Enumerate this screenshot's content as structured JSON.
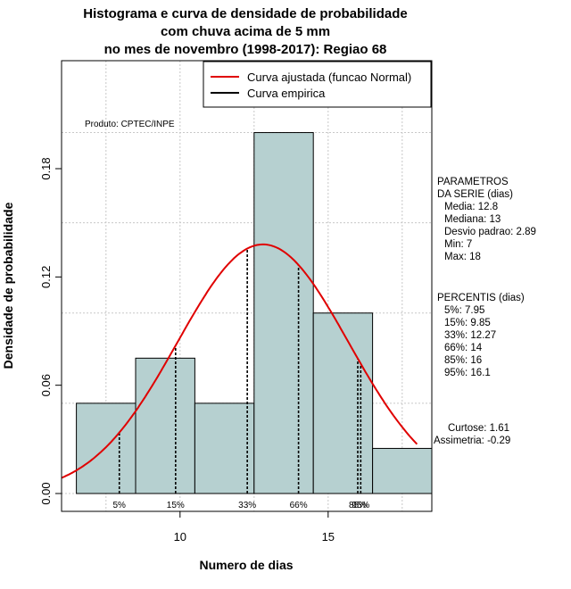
{
  "chart_data": {
    "type": "bar",
    "title_lines": [
      "Histograma e curva de densidade de probabilidade",
      "com chuva acima de 5 mm",
      "no mes de novembro (1998-2017): Regiao 68"
    ],
    "xlabel": "Numero de dias",
    "ylabel": "Densidade de probabilidade",
    "xlim": [
      6.0,
      18.5
    ],
    "ylim": [
      0.0,
      0.24
    ],
    "x_ticks": [
      10,
      15
    ],
    "y_ticks": [
      0.0,
      0.06,
      0.12,
      0.18
    ],
    "y_tick_labels": [
      "0.00",
      "0.06",
      "0.12",
      "0.18"
    ],
    "bins": [
      {
        "start": 6.5,
        "end": 8.5,
        "density": 0.05
      },
      {
        "start": 8.5,
        "end": 10.5,
        "density": 0.075
      },
      {
        "start": 10.5,
        "end": 12.5,
        "density": 0.05
      },
      {
        "start": 12.5,
        "end": 14.5,
        "density": 0.2
      },
      {
        "start": 14.5,
        "end": 16.5,
        "density": 0.1
      },
      {
        "start": 16.5,
        "end": 18.5,
        "density": 0.025
      }
    ],
    "fitted_curve": {
      "name": "Curva ajustada (funcao Normal)",
      "distribution": "normal",
      "mean": 12.8,
      "sd": 2.89,
      "color": "#e00000"
    },
    "empirical_curve": {
      "name": "Curva empirica",
      "color": "#000000"
    },
    "percentile_markers": [
      {
        "label": "5%",
        "x": 7.95
      },
      {
        "label": "15%",
        "x": 9.85
      },
      {
        "label": "33%",
        "x": 12.27
      },
      {
        "label": "66%",
        "x": 14
      },
      {
        "label": "85%",
        "x": 16
      },
      {
        "label": "95%",
        "x": 16.1
      }
    ],
    "bar_color": "#b6d0d0",
    "grid": true,
    "legend_position": "top-right"
  },
  "annotation": "Produto: CPTEC/INPE",
  "parameters": {
    "heading_1": "PARAMETROS",
    "heading_2": "DA SERIE (dias)",
    "lines": [
      "Media: 12.8",
      "Mediana: 13",
      "Desvio padrao: 2.89",
      "Min: 7",
      "Max: 18"
    ]
  },
  "percentis": {
    "heading": "PERCENTIS (dias)",
    "lines": [
      "5%: 7.95",
      "15%: 9.85",
      "33%: 12.27",
      "66%: 14",
      "85%: 16",
      "95%: 16.1"
    ]
  },
  "shape_stats": {
    "curtose": "Curtose: 1.61",
    "assimetria": "Assimetria: -0.29"
  }
}
